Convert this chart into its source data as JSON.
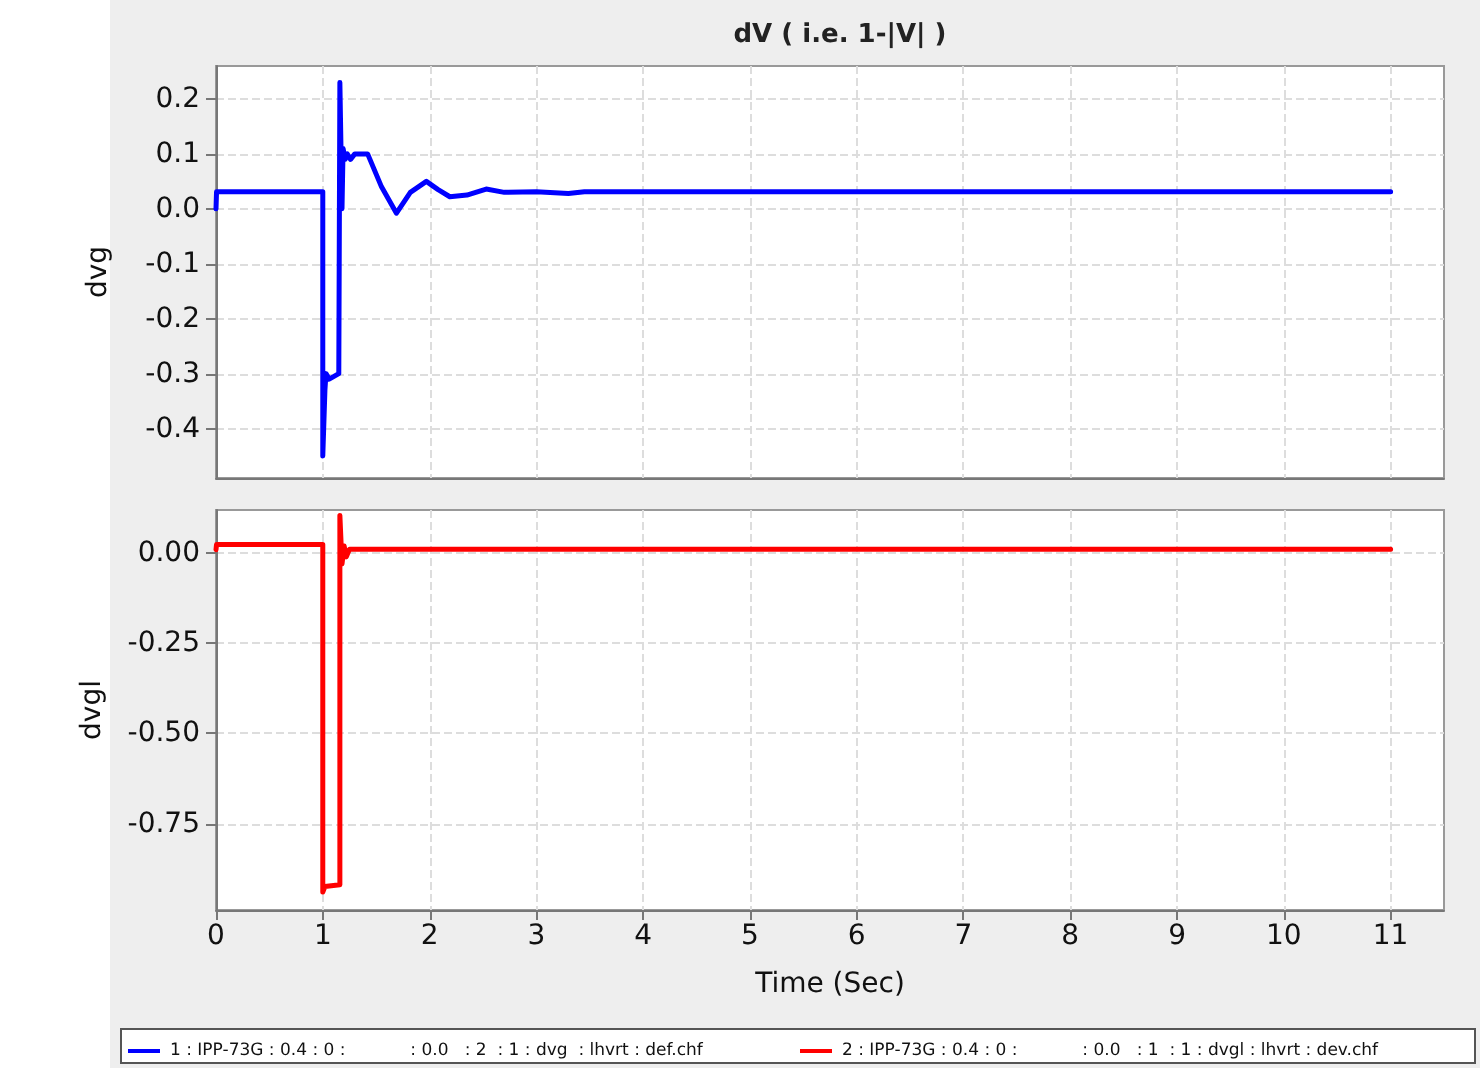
{
  "chart_data": [
    {
      "type": "line",
      "title": "dV ( i.e. 1-|V| )",
      "ylabel": "dvg",
      "xlim": [
        0,
        11.5
      ],
      "xticks": [
        0,
        1,
        2,
        3,
        4,
        5,
        6,
        7,
        8,
        9,
        10,
        11
      ],
      "ylim": [
        -0.49,
        0.26
      ],
      "yticks": [
        {
          "value": -0.4,
          "label": "-0.4"
        },
        {
          "value": -0.3,
          "label": "-0.3"
        },
        {
          "value": -0.2,
          "label": "-0.2"
        },
        {
          "value": -0.1,
          "label": "-0.1"
        },
        {
          "value": 0,
          "label": "0.0"
        },
        {
          "value": 0.1,
          "label": "0.1"
        },
        {
          "value": 0.2,
          "label": "0.2"
        }
      ],
      "tick_labels": "y",
      "grid": true,
      "legend": "bottom",
      "marker": "none",
      "line_style": "solid",
      "series": [
        {
          "name": "1 : IPP-73G : 0.4 : 0 :            : 0.0   : 2  : 1 : dvg  : lhvrt : def.chf",
          "color": "#0000ff",
          "x": [
            0,
            0.005,
            1.0,
            1.0,
            1.02,
            1.03,
            1.06,
            1.15,
            1.16,
            1.18,
            1.19,
            1.21,
            1.23,
            1.26,
            1.3,
            1.42,
            1.55,
            1.69,
            1.82,
            1.97,
            2.08,
            2.19,
            2.35,
            2.53,
            2.7,
            3.0,
            3.3,
            3.45,
            11
          ],
          "values": [
            0.0,
            0.031,
            0.031,
            -0.45,
            -0.33,
            -0.3,
            -0.31,
            -0.3,
            0.23,
            0.0,
            0.11,
            0.09,
            0.1,
            0.09,
            0.1,
            0.1,
            0.04,
            -0.008,
            0.03,
            0.05,
            0.035,
            0.022,
            0.025,
            0.036,
            0.03,
            0.031,
            0.028,
            0.031,
            0.031
          ]
        }
      ]
    },
    {
      "type": "line",
      "xlabel": "Time (Sec)",
      "ylabel": "dvgl",
      "xlim": [
        0,
        11.5
      ],
      "xticks": [
        0,
        1,
        2,
        3,
        4,
        5,
        6,
        7,
        8,
        9,
        10,
        11
      ],
      "ylim": [
        -0.99,
        0.12
      ],
      "yticks": [
        {
          "value": -0.75,
          "label": "-0.75"
        },
        {
          "value": -0.5,
          "label": "-0.50"
        },
        {
          "value": -0.25,
          "label": "-0.25"
        },
        {
          "value": 0,
          "label": "0.00"
        }
      ],
      "grid": true,
      "legend": "bottom",
      "marker": "none",
      "line_style": "solid",
      "series": [
        {
          "name": "2 : IPP-73G : 0.4 : 0 :            : 0.0   : 1  : 1 : dvgl : lhvrt : dev.chf",
          "color": "#ff0000",
          "x": [
            0,
            0.005,
            1.0,
            1.0,
            1.02,
            1.16,
            1.16,
            1.18,
            1.2,
            1.22,
            1.25,
            11
          ],
          "values": [
            0.01,
            0.024,
            0.024,
            -0.94,
            -0.925,
            -0.92,
            0.105,
            -0.03,
            0.02,
            -0.01,
            0.011,
            0.011
          ]
        }
      ]
    }
  ]
}
